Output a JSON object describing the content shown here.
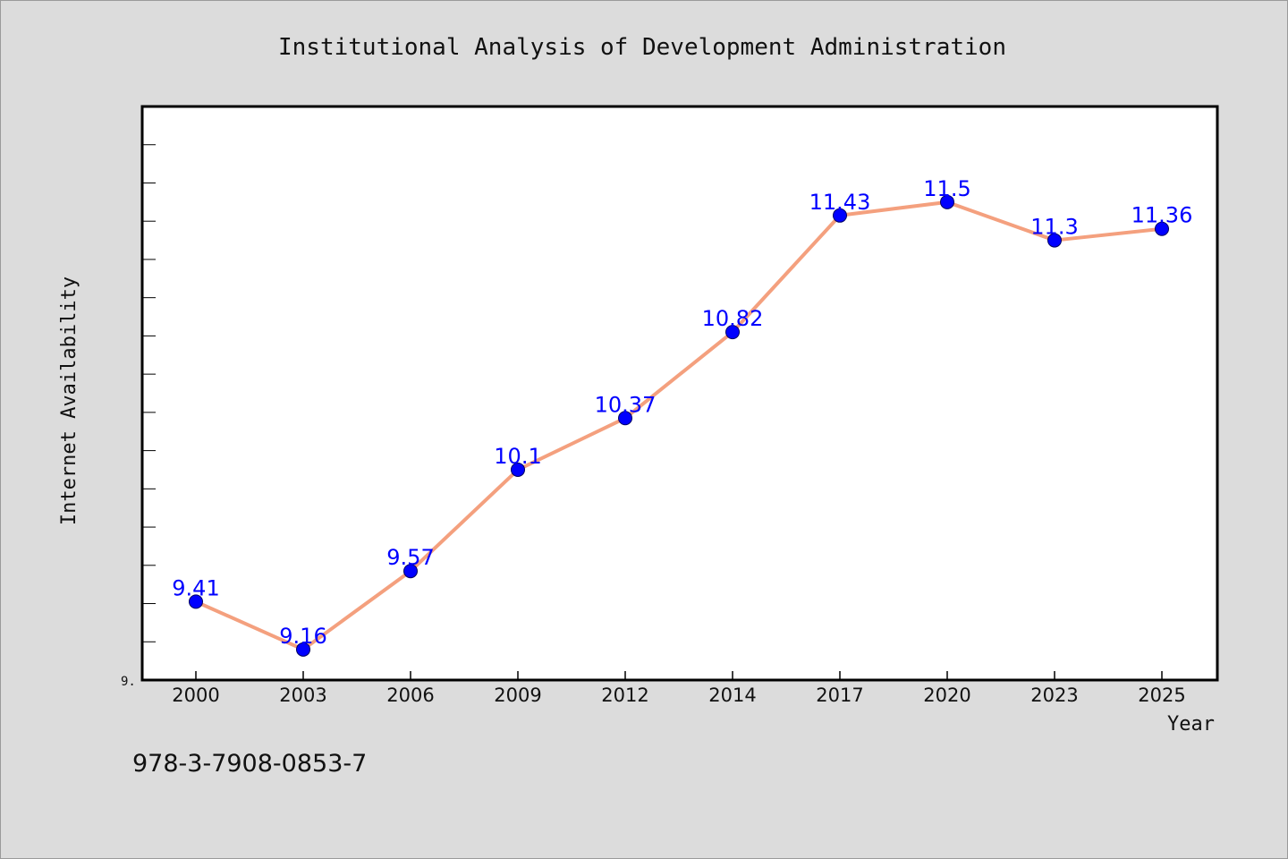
{
  "chart_data": {
    "type": "line",
    "title": "Institutional Analysis of Development Administration",
    "xlabel": "Year",
    "ylabel": "Internet Availability",
    "categories": [
      "2000",
      "2003",
      "2006",
      "2009",
      "2012",
      "2014",
      "2017",
      "2020",
      "2023",
      "2025"
    ],
    "series": [
      {
        "values": [
          9.41,
          9.16,
          9.57,
          10.1,
          10.37,
          10.82,
          11.43,
          11.5,
          11.3,
          11.36
        ],
        "data_labels": [
          "9.41",
          "9.16",
          "9.57",
          "10.1",
          "10.37",
          "10.82",
          "11.43",
          "11.5",
          "11.3",
          "11.36"
        ],
        "line_color": "#f4a07e",
        "marker_color": "#0000ff"
      }
    ],
    "ylim": [
      9.0,
      12.0
    ],
    "ytick_label": "9.",
    "grid": false,
    "legend": "none"
  },
  "footer": {
    "isbn": "978-3-7908-0853-7"
  }
}
